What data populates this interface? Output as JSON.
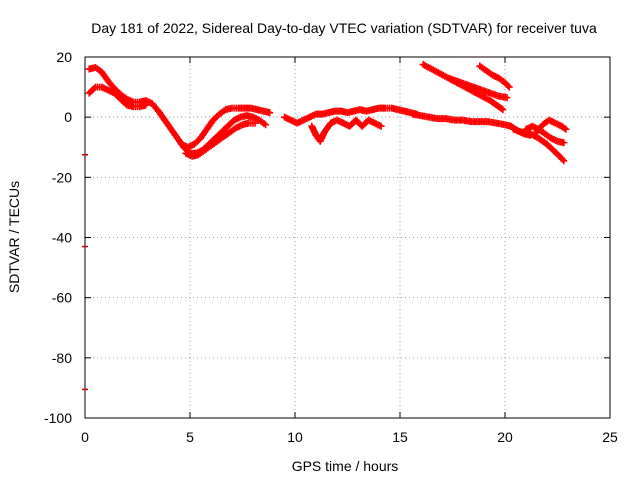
{
  "chart_data": {
    "type": "scatter",
    "title": "Day 181 of 2022, Sidereal Day-to-day VTEC variation (SDTVAR) for receiver tuva",
    "xlabel": "GPS time / hours",
    "ylabel": "SDTVAR / TECUs",
    "xlim": [
      0,
      25
    ],
    "ylim": [
      -100,
      20
    ],
    "xticks": [
      0,
      5,
      10,
      15,
      20,
      25
    ],
    "xtick_labels": [
      "0",
      "5",
      "10",
      "15",
      "20",
      "25"
    ],
    "yticks": [
      -100,
      -80,
      -60,
      -40,
      -20,
      0,
      20
    ],
    "ytick_labels": [
      "-100",
      "-80",
      "-60",
      "-40",
      "-20",
      "0",
      "20"
    ],
    "grid": true,
    "marker": "+",
    "color": "#ff0000",
    "outliers": [
      {
        "x": 0,
        "y": -12.5
      },
      {
        "x": 0,
        "y": -43
      },
      {
        "x": 0,
        "y": -90.5
      }
    ],
    "series": [
      {
        "name": "track-a",
        "points": [
          [
            0.2,
            16
          ],
          [
            0.5,
            16.5
          ],
          [
            0.8,
            15
          ],
          [
            1.1,
            12
          ],
          [
            1.4,
            9.5
          ],
          [
            1.7,
            7.5
          ],
          [
            2,
            6
          ],
          [
            2.3,
            5
          ],
          [
            2.6,
            5
          ],
          [
            2.9,
            5.5
          ],
          [
            3.2,
            4.5
          ],
          [
            3.5,
            2
          ],
          [
            3.8,
            -1
          ],
          [
            4.1,
            -4
          ],
          [
            4.4,
            -7
          ],
          [
            4.7,
            -10
          ],
          [
            5,
            -12
          ],
          [
            5.3,
            -12
          ],
          [
            5.6,
            -11
          ],
          [
            5.9,
            -9
          ],
          [
            6.2,
            -7
          ],
          [
            6.5,
            -5
          ],
          [
            6.8,
            -3
          ],
          [
            7.1,
            -1
          ],
          [
            7.4,
            0
          ],
          [
            7.7,
            0.5
          ],
          [
            8,
            0
          ],
          [
            8.3,
            -1
          ],
          [
            8.6,
            -2.5
          ]
        ]
      },
      {
        "name": "track-b",
        "points": [
          [
            0.2,
            8
          ],
          [
            0.5,
            10
          ],
          [
            0.8,
            10
          ],
          [
            1.1,
            9
          ],
          [
            1.4,
            8
          ],
          [
            1.7,
            6
          ],
          [
            2,
            4
          ],
          [
            2.3,
            3.5
          ],
          [
            2.6,
            3.5
          ],
          [
            2.9,
            4
          ]
        ]
      },
      {
        "name": "track-c",
        "points": [
          [
            4.6,
            -9
          ],
          [
            4.9,
            -10
          ],
          [
            5.2,
            -9
          ],
          [
            5.5,
            -7
          ],
          [
            5.8,
            -4
          ],
          [
            6.1,
            -1
          ],
          [
            6.4,
            1
          ],
          [
            6.7,
            2.5
          ],
          [
            7,
            3
          ],
          [
            7.3,
            3
          ],
          [
            7.6,
            3
          ],
          [
            7.9,
            3
          ],
          [
            8.2,
            2.5
          ],
          [
            8.5,
            2
          ],
          [
            8.8,
            1.5
          ]
        ]
      },
      {
        "name": "track-d",
        "points": [
          [
            4.8,
            -12
          ],
          [
            5.1,
            -13
          ],
          [
            5.4,
            -12.5
          ],
          [
            5.7,
            -11
          ],
          [
            6,
            -9.5
          ],
          [
            6.3,
            -8
          ],
          [
            6.6,
            -6.5
          ],
          [
            6.9,
            -5
          ],
          [
            7.2,
            -3.5
          ],
          [
            7.5,
            -2.5
          ],
          [
            7.8,
            -2
          ],
          [
            8.1,
            -2
          ]
        ]
      },
      {
        "name": "track-e",
        "points": [
          [
            9.5,
            0
          ],
          [
            9.8,
            -1
          ],
          [
            10.1,
            -2
          ],
          [
            10.4,
            -1
          ],
          [
            10.7,
            0
          ],
          [
            11,
            1
          ],
          [
            11.3,
            1
          ],
          [
            11.6,
            1.5
          ],
          [
            11.9,
            2
          ],
          [
            12.2,
            2
          ],
          [
            12.5,
            1.5
          ],
          [
            12.8,
            2
          ],
          [
            13.1,
            2.5
          ],
          [
            13.4,
            2
          ],
          [
            13.7,
            2.5
          ],
          [
            14,
            3
          ],
          [
            14.3,
            3
          ],
          [
            14.6,
            3
          ],
          [
            14.9,
            2.5
          ],
          [
            15.2,
            2
          ],
          [
            15.5,
            1.5
          ],
          [
            15.8,
            1
          ]
        ]
      },
      {
        "name": "track-f",
        "points": [
          [
            10.8,
            -3
          ],
          [
            11,
            -6
          ],
          [
            11.2,
            -8
          ],
          [
            11.4,
            -5
          ],
          [
            11.7,
            -2
          ],
          [
            12,
            -1
          ],
          [
            12.3,
            -2
          ],
          [
            12.6,
            -3
          ],
          [
            12.9,
            -1
          ],
          [
            13.2,
            -3
          ],
          [
            13.5,
            -1
          ],
          [
            13.8,
            -2
          ],
          [
            14.1,
            -3
          ]
        ]
      },
      {
        "name": "track-g",
        "points": [
          [
            15.6,
            1
          ],
          [
            16,
            0.5
          ],
          [
            16.4,
            0
          ],
          [
            16.8,
            -0.5
          ],
          [
            17.2,
            -0.5
          ],
          [
            17.6,
            -1
          ],
          [
            18,
            -1
          ],
          [
            18.4,
            -1.5
          ],
          [
            18.8,
            -1.5
          ],
          [
            19.2,
            -1.5
          ],
          [
            19.6,
            -2
          ],
          [
            20,
            -2.5
          ],
          [
            20.3,
            -3
          ],
          [
            20.6,
            -4.5
          ],
          [
            20.9,
            -5.5
          ],
          [
            21.2,
            -6
          ]
        ]
      },
      {
        "name": "track-h",
        "points": [
          [
            16.1,
            17.5
          ],
          [
            16.5,
            16
          ],
          [
            16.9,
            14.5
          ],
          [
            17.3,
            13
          ],
          [
            17.7,
            11.5
          ],
          [
            18.1,
            10
          ],
          [
            18.5,
            8.5
          ],
          [
            18.9,
            7
          ],
          [
            19.3,
            5.5
          ],
          [
            19.7,
            3.5
          ],
          [
            19.9,
            2.5
          ]
        ]
      },
      {
        "name": "track-i",
        "points": [
          [
            17.3,
            13
          ],
          [
            17.7,
            12
          ],
          [
            18.1,
            11
          ],
          [
            18.5,
            10
          ],
          [
            18.9,
            9
          ],
          [
            19.3,
            8
          ],
          [
            19.7,
            7
          ],
          [
            20.1,
            6.5
          ]
        ]
      },
      {
        "name": "track-j",
        "points": [
          [
            18.8,
            17
          ],
          [
            19.1,
            15.5
          ],
          [
            19.4,
            14
          ],
          [
            19.7,
            13
          ],
          [
            20,
            11.5
          ],
          [
            20.2,
            10
          ]
        ]
      },
      {
        "name": "track-k",
        "points": [
          [
            20.4,
            -4
          ],
          [
            20.8,
            -5
          ],
          [
            21.2,
            -5.5
          ],
          [
            21.6,
            -7
          ],
          [
            22,
            -9
          ],
          [
            22.3,
            -11
          ],
          [
            22.6,
            -13
          ],
          [
            22.8,
            -14.5
          ]
        ]
      },
      {
        "name": "track-l",
        "points": [
          [
            21,
            -4
          ],
          [
            21.3,
            -3
          ],
          [
            21.6,
            -4
          ],
          [
            21.9,
            -5.5
          ],
          [
            22.2,
            -7
          ],
          [
            22.5,
            -8
          ],
          [
            22.8,
            -8.5
          ]
        ]
      },
      {
        "name": "track-m",
        "points": [
          [
            21.5,
            -5
          ],
          [
            21.8,
            -2.5
          ],
          [
            22.1,
            -1
          ],
          [
            22.4,
            -2
          ],
          [
            22.7,
            -3
          ],
          [
            22.9,
            -4
          ]
        ]
      }
    ]
  }
}
